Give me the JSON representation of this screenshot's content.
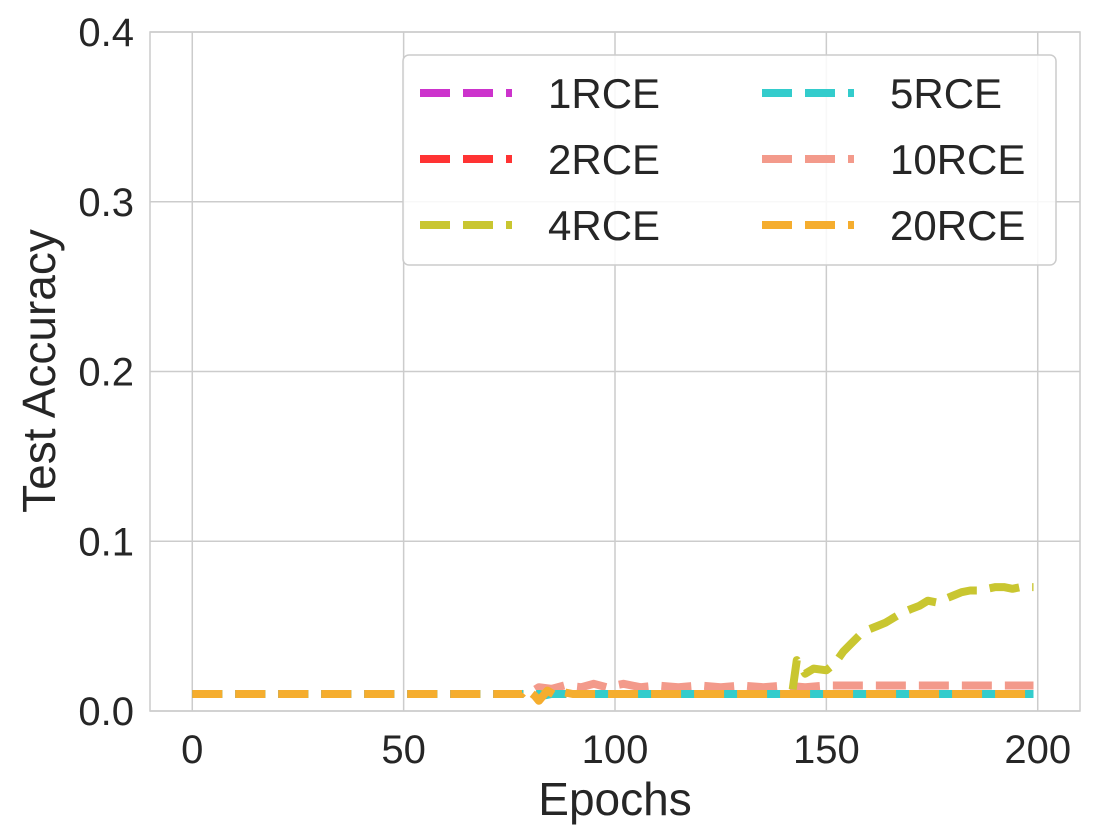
{
  "chart_data": {
    "type": "line",
    "xlabel": "Epochs",
    "ylabel": "Test Accuracy",
    "xlim": [
      -10,
      210
    ],
    "ylim": [
      0,
      0.4
    ],
    "xticks": [
      0,
      50,
      100,
      150,
      200
    ],
    "xtick_labels": [
      "0",
      "50",
      "100",
      "150",
      "200"
    ],
    "yticks": [
      0,
      0.1,
      0.2,
      0.3,
      0.4
    ],
    "ytick_labels": [
      "0.0",
      "0.1",
      "0.2",
      "0.3",
      "0.4"
    ],
    "grid": true,
    "legend_position": "top-right",
    "legend_columns": 2,
    "series": [
      {
        "name": "1RCE",
        "color": "#cc33cc",
        "style": "dashed",
        "points": [
          [
            0,
            0.01
          ],
          [
            199,
            0.01
          ]
        ]
      },
      {
        "name": "2RCE",
        "color": "#ff3333",
        "style": "dashed",
        "points": [
          [
            0,
            0.01
          ],
          [
            199,
            0.01
          ]
        ]
      },
      {
        "name": "4RCE",
        "color": "#c9c630",
        "style": "dashed",
        "points": [
          [
            0,
            0.01
          ],
          [
            140,
            0.01
          ],
          [
            142,
            0.012
          ],
          [
            143,
            0.03
          ],
          [
            145,
            0.022
          ],
          [
            147,
            0.025
          ],
          [
            150,
            0.024
          ],
          [
            152,
            0.028
          ],
          [
            154,
            0.035
          ],
          [
            156,
            0.04
          ],
          [
            158,
            0.045
          ],
          [
            160,
            0.048
          ],
          [
            162,
            0.05
          ],
          [
            164,
            0.052
          ],
          [
            166,
            0.055
          ],
          [
            168,
            0.058
          ],
          [
            170,
            0.06
          ],
          [
            172,
            0.062
          ],
          [
            174,
            0.065
          ],
          [
            176,
            0.064
          ],
          [
            178,
            0.066
          ],
          [
            180,
            0.068
          ],
          [
            182,
            0.07
          ],
          [
            184,
            0.071
          ],
          [
            186,
            0.071
          ],
          [
            188,
            0.072
          ],
          [
            190,
            0.073
          ],
          [
            192,
            0.073
          ],
          [
            194,
            0.072
          ],
          [
            196,
            0.073
          ],
          [
            199,
            0.073
          ]
        ]
      },
      {
        "name": "5RCE",
        "color": "#33cccc",
        "style": "dashed",
        "points": [
          [
            0,
            0.01
          ],
          [
            82,
            0.01
          ],
          [
            83,
            0.009
          ],
          [
            85,
            0.01
          ],
          [
            199,
            0.01
          ]
        ]
      },
      {
        "name": "10RCE",
        "color": "#f39a8b",
        "style": "dashed",
        "points": [
          [
            0,
            0.01
          ],
          [
            78,
            0.01
          ],
          [
            80,
            0.011
          ],
          [
            82,
            0.014
          ],
          [
            85,
            0.013
          ],
          [
            88,
            0.015
          ],
          [
            92,
            0.014
          ],
          [
            95,
            0.016
          ],
          [
            98,
            0.014
          ],
          [
            102,
            0.016
          ],
          [
            106,
            0.014
          ],
          [
            110,
            0.015
          ],
          [
            115,
            0.014
          ],
          [
            120,
            0.015
          ],
          [
            125,
            0.014
          ],
          [
            130,
            0.015
          ],
          [
            135,
            0.014
          ],
          [
            140,
            0.015
          ],
          [
            145,
            0.014
          ],
          [
            150,
            0.015
          ],
          [
            160,
            0.015
          ],
          [
            170,
            0.015
          ],
          [
            180,
            0.015
          ],
          [
            190,
            0.015
          ],
          [
            199,
            0.015
          ]
        ]
      },
      {
        "name": "20RCE",
        "color": "#f5ad2e",
        "style": "dashed",
        "points": [
          [
            0,
            0.01
          ],
          [
            78,
            0.01
          ],
          [
            79,
            0.013
          ],
          [
            81,
            0.009
          ],
          [
            82,
            0.006
          ],
          [
            84,
            0.012
          ],
          [
            86,
            0.009
          ],
          [
            88,
            0.011
          ],
          [
            90,
            0.01
          ],
          [
            199,
            0.01
          ]
        ]
      }
    ]
  }
}
